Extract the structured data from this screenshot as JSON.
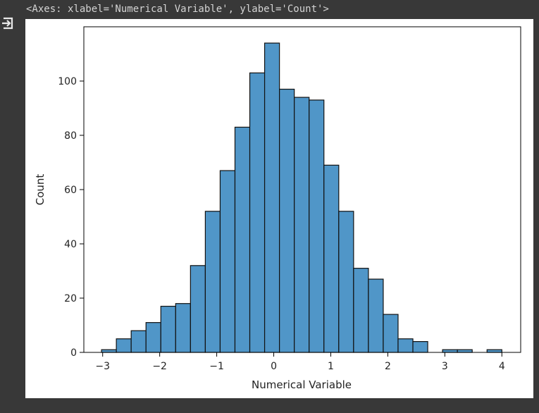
{
  "output": {
    "repr_text": "<Axes: xlabel='Numerical Variable', ylabel='Count'>",
    "icon": "output-arrow-icon"
  },
  "chart_data": {
    "type": "bar",
    "title": "",
    "xlabel": "Numerical Variable",
    "ylabel": "Count",
    "bar_color": "#5096c8",
    "edge_color": "#111111",
    "xlim": [
      -3.33,
      4.33
    ],
    "ylim": [
      0,
      120
    ],
    "xticks": [
      -3,
      -2,
      -1,
      0,
      1,
      2,
      3,
      4
    ],
    "xtick_labels": [
      "−3",
      "−2",
      "−1",
      "0",
      "1",
      "2",
      "3",
      "4"
    ],
    "yticks": [
      0,
      20,
      40,
      60,
      80,
      100
    ],
    "ytick_labels": [
      "0",
      "20",
      "40",
      "60",
      "80",
      "100"
    ],
    "bin_edges": [
      -3.02,
      -2.76,
      -2.5,
      -2.24,
      -1.98,
      -1.72,
      -1.46,
      -1.2,
      -0.94,
      -0.68,
      -0.42,
      -0.16,
      0.1,
      0.36,
      0.62,
      0.88,
      1.14,
      1.4,
      1.66,
      1.92,
      2.18,
      2.44,
      2.7,
      2.96,
      3.22,
      3.48,
      3.74,
      4.0
    ],
    "counts": [
      1,
      5,
      8,
      11,
      17,
      18,
      32,
      52,
      67,
      83,
      103,
      114,
      97,
      94,
      93,
      69,
      52,
      31,
      27,
      14,
      5,
      4,
      0,
      1,
      1,
      0,
      1
    ],
    "grid": false
  }
}
